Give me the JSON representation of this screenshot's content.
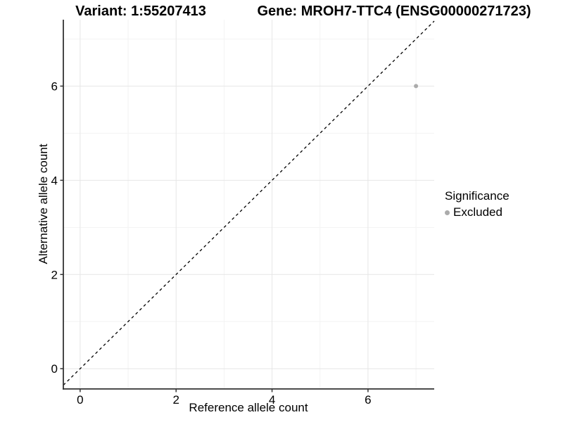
{
  "chart_data": {
    "type": "scatter",
    "title_left": "Variant: 1:55207413",
    "title_right": "Gene: MROH7-TTC4 (ENSG00000271723)",
    "xlabel": "Reference allele count",
    "ylabel": "Alternative allele count",
    "xlim": [
      -0.35,
      7.38
    ],
    "ylim": [
      -0.43,
      7.41
    ],
    "x_ticks": [
      0,
      2,
      4,
      6
    ],
    "y_ticks": [
      0,
      2,
      4,
      6
    ],
    "x_minor_ticks": [
      1,
      3,
      5,
      7
    ],
    "y_minor_ticks": [
      1,
      3,
      5,
      7
    ],
    "grid": "major and minor gridlines on white background",
    "identity_line": {
      "slope": 1,
      "intercept": 0,
      "style": "dashed",
      "color": "#000000"
    },
    "series": [
      {
        "name": "Excluded",
        "color": "#ababab",
        "points": [
          {
            "x": 7,
            "y": 6
          }
        ]
      }
    ],
    "legend": {
      "title": "Significance",
      "position": "right",
      "entries": [
        {
          "label": "Excluded",
          "color": "#ababab"
        }
      ]
    },
    "colors": {
      "background": "#ffffff",
      "grid_major": "#e6e6e6",
      "grid_minor": "#f3f3f3",
      "axis_line": "#333333",
      "tick_text": "#000000",
      "point": "#ababab"
    }
  }
}
